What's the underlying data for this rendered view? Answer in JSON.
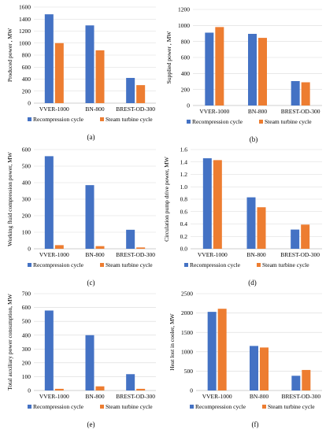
{
  "colors": {
    "series_a": "#4472C4",
    "series_b": "#ED7D31",
    "grid": "#d9d9d9",
    "axis": "#bfbfbf"
  },
  "chart_data": [
    {
      "type": "bar",
      "panel_label": "(a)",
      "ylabel": "Produced power , MW",
      "ylim": [
        0,
        1600
      ],
      "yticks": [
        0,
        200,
        400,
        600,
        800,
        1000,
        1200,
        1400,
        1600
      ],
      "categories": [
        "VVER-1000",
        "BN-800",
        "BREST-OD-300"
      ],
      "series": [
        {
          "name": "Recompression cycle",
          "values": [
            1480,
            1295,
            420
          ]
        },
        {
          "name": "Steam turbine cycle",
          "values": [
            1000,
            880,
            300
          ]
        }
      ],
      "legend": "bottom",
      "grid": true
    },
    {
      "type": "bar",
      "panel_label": "(b)",
      "ylabel": "Supplied power , MW",
      "ylim": [
        0,
        1200
      ],
      "yticks": [
        0,
        200,
        400,
        600,
        800,
        1000,
        1200
      ],
      "categories": [
        "VVER-1000",
        "BN-800",
        "BREST-OD-300"
      ],
      "series": [
        {
          "name": "Recompression cycle",
          "values": [
            910,
            895,
            305
          ]
        },
        {
          "name": "Steam turbine cycle",
          "values": [
            980,
            845,
            290
          ]
        }
      ],
      "legend": "bottom",
      "grid": true
    },
    {
      "type": "bar",
      "panel_label": "(c)",
      "ylabel": "Working fluid compression power, MW",
      "ylim": [
        0,
        600
      ],
      "yticks": [
        0,
        100,
        200,
        300,
        400,
        500,
        600
      ],
      "categories": [
        "VVER-1000",
        "BN-800",
        "BREST-OD-300"
      ],
      "series": [
        {
          "name": "Recompression cycle",
          "values": [
            560,
            385,
            115
          ]
        },
        {
          "name": "Steam turbine cycle",
          "values": [
            22,
            16,
            8
          ]
        }
      ],
      "legend": "bottom",
      "grid": true
    },
    {
      "type": "bar",
      "panel_label": "(d)",
      "ylabel": "Circulation pump drive power, MW",
      "ylim": [
        0,
        1.6
      ],
      "yticks": [
        0,
        0.2,
        0.4,
        0.6,
        0.8,
        1.0,
        1.2,
        1.4,
        1.6
      ],
      "tick_decimals": 1,
      "categories": [
        "VVER-1000",
        "BN-800",
        "BREST-OD-300"
      ],
      "series": [
        {
          "name": "Recompression cycle",
          "values": [
            1.46,
            0.83,
            0.31
          ]
        },
        {
          "name": "Steam turbine cycle",
          "values": [
            1.43,
            0.67,
            0.39
          ]
        }
      ],
      "legend": "bottom",
      "grid": true
    },
    {
      "type": "bar",
      "panel_label": "(e)",
      "ylabel": "Total auxiliary power consumption, MW",
      "ylim": [
        0,
        700
      ],
      "yticks": [
        0,
        100,
        200,
        300,
        400,
        500,
        600,
        700
      ],
      "categories": [
        "VVER-1000",
        "BN-800",
        "BREST-OD-300"
      ],
      "series": [
        {
          "name": "Recompression cycle",
          "values": [
            578,
            400,
            118
          ]
        },
        {
          "name": "Steam turbine cycle",
          "values": [
            12,
            30,
            12
          ]
        }
      ],
      "legend": "bottom",
      "grid": true
    },
    {
      "type": "bar",
      "panel_label": "(f)",
      "ylabel": "Heat lost in cooler, MW",
      "ylim": [
        0,
        2500
      ],
      "yticks": [
        0,
        500,
        1000,
        1500,
        2000,
        2500
      ],
      "categories": [
        "VVER-1000",
        "BN-800",
        "BREST-OD-300"
      ],
      "series": [
        {
          "name": "Recompression cycle",
          "values": [
            2030,
            1150,
            380
          ]
        },
        {
          "name": "Steam turbine cycle",
          "values": [
            2110,
            1110,
            530
          ]
        }
      ],
      "legend": "bottom",
      "grid": true
    }
  ]
}
